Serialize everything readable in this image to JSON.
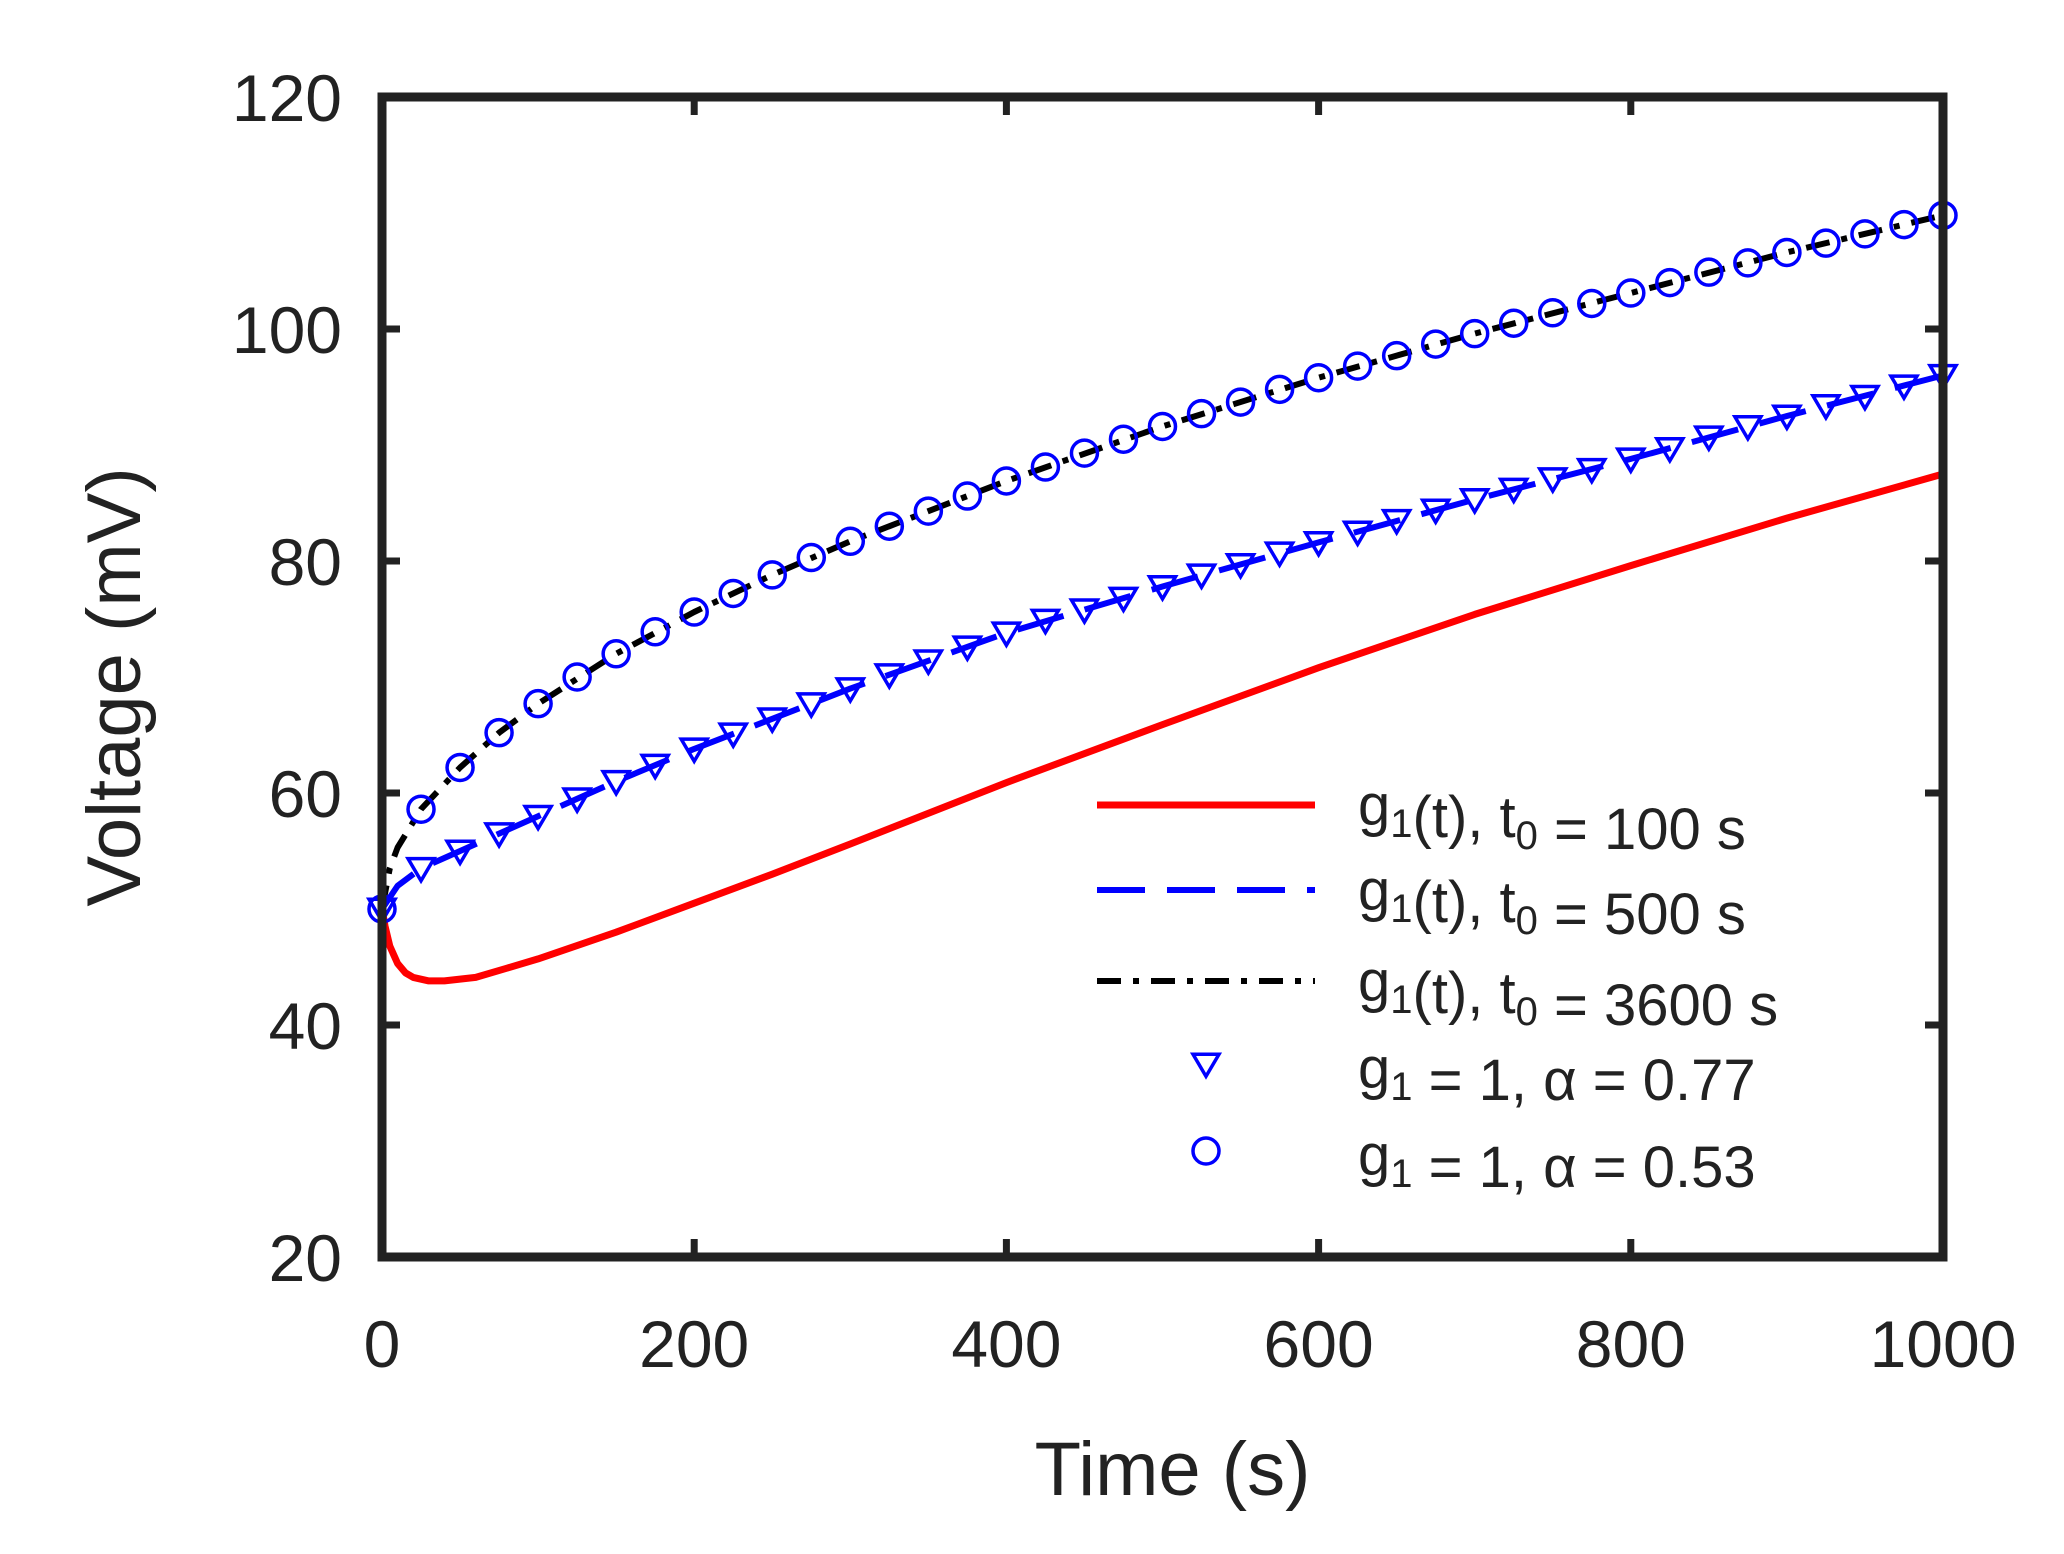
{
  "chart_data": {
    "type": "line",
    "xlabel": "Time (s)",
    "ylabel": "Voltage (mV)",
    "xlim": [
      0,
      1000
    ],
    "ylim": [
      20,
      120
    ],
    "xticks": [
      "0",
      "200",
      "400",
      "600",
      "800",
      "1000"
    ],
    "yticks": [
      "20",
      "40",
      "60",
      "80",
      "100",
      "120"
    ],
    "grid": false,
    "legend_position": "bottom-right",
    "series": [
      {
        "name": "g1(t), t0 = 100 s",
        "label_parts": [
          "g",
          "1",
          "(t), t",
          "0",
          " = 100 s"
        ],
        "style": "solid",
        "color": "#ff0000",
        "x": [
          0,
          2,
          5,
          10,
          15,
          20,
          30,
          40,
          60,
          80,
          100,
          150,
          200,
          250,
          300,
          400,
          500,
          600,
          700,
          800,
          900,
          1000
        ],
        "y": [
          50,
          48.5,
          46.8,
          45.3,
          44.5,
          44.1,
          43.8,
          43.8,
          44.1,
          44.9,
          45.7,
          48.0,
          50.5,
          53.0,
          55.6,
          60.9,
          65.9,
          70.8,
          75.4,
          79.6,
          83.7,
          87.5
        ]
      },
      {
        "name": "g1(t), t0 = 500 s",
        "label_parts": [
          "g",
          "1",
          "(t), t",
          "0",
          " = 500 s"
        ],
        "style": "dashed",
        "color": "#0000ff",
        "x": [
          0,
          10,
          25,
          50,
          75,
          100,
          150,
          200,
          250,
          300,
          400,
          500,
          600,
          700,
          800,
          900,
          1000
        ],
        "y": [
          50,
          52.0,
          53.5,
          55.0,
          56.5,
          58.0,
          61.0,
          63.8,
          66.4,
          69.0,
          73.8,
          77.8,
          81.6,
          85.3,
          88.8,
          92.5,
          96.0
        ]
      },
      {
        "name": "g1(t), t0 = 3600 s",
        "label_parts": [
          "g",
          "1",
          "(t), t",
          "0",
          " = 3600 s"
        ],
        "style": "dashdot",
        "color": "#000000",
        "x": [
          0,
          5,
          10,
          25,
          50,
          75,
          100,
          150,
          200,
          250,
          300,
          400,
          500,
          600,
          700,
          800,
          900,
          1000
        ],
        "y": [
          50,
          53.5,
          55.3,
          58.6,
          62.2,
          65.2,
          67.7,
          72.0,
          75.6,
          78.8,
          81.7,
          86.9,
          91.6,
          95.8,
          99.6,
          103.1,
          106.6,
          109.8
        ]
      },
      {
        "name": "g1 = 1, α = 0.77",
        "label_parts": [
          "g",
          "1",
          " = 1, α = 0.77",
          "",
          ""
        ],
        "style": "triangle-markers",
        "color": "#0000ff",
        "x": [
          0,
          25,
          50,
          75,
          100,
          125,
          150,
          175,
          200,
          225,
          250,
          275,
          300,
          325,
          350,
          375,
          400,
          425,
          450,
          475,
          500,
          525,
          550,
          575,
          600,
          625,
          650,
          675,
          700,
          725,
          750,
          775,
          800,
          825,
          850,
          875,
          900,
          925,
          950,
          975,
          1000
        ],
        "y": [
          50,
          53.5,
          55.0,
          56.5,
          58.0,
          59.5,
          61.0,
          62.4,
          63.8,
          65.1,
          66.4,
          67.7,
          69.0,
          70.2,
          71.4,
          72.6,
          73.8,
          74.9,
          75.8,
          76.8,
          77.8,
          78.8,
          79.7,
          80.7,
          81.6,
          82.5,
          83.5,
          84.4,
          85.3,
          86.2,
          87.1,
          87.9,
          88.8,
          89.7,
          90.7,
          91.6,
          92.5,
          93.4,
          94.2,
          95.1,
          96.0
        ]
      },
      {
        "name": "g1 = 1, α = 0.53",
        "label_parts": [
          "g",
          "1",
          " = 1, α = 0.53",
          "",
          ""
        ],
        "style": "circle-markers",
        "color": "#0000ff",
        "x": [
          0,
          25,
          50,
          75,
          100,
          125,
          150,
          175,
          200,
          225,
          250,
          275,
          300,
          325,
          350,
          375,
          400,
          425,
          450,
          475,
          500,
          525,
          550,
          575,
          600,
          625,
          650,
          675,
          700,
          725,
          750,
          775,
          800,
          825,
          850,
          875,
          900,
          925,
          950,
          975,
          1000
        ],
        "y": [
          50,
          58.6,
          62.2,
          65.2,
          67.7,
          70.0,
          72.0,
          73.9,
          75.6,
          77.2,
          78.8,
          80.3,
          81.7,
          83.0,
          84.3,
          85.6,
          86.9,
          88.1,
          89.3,
          90.5,
          91.6,
          92.7,
          93.7,
          94.8,
          95.8,
          96.8,
          97.7,
          98.7,
          99.6,
          100.5,
          101.4,
          102.2,
          103.1,
          104.0,
          104.9,
          105.7,
          106.6,
          107.4,
          108.2,
          109.0,
          109.8
        ]
      }
    ]
  }
}
